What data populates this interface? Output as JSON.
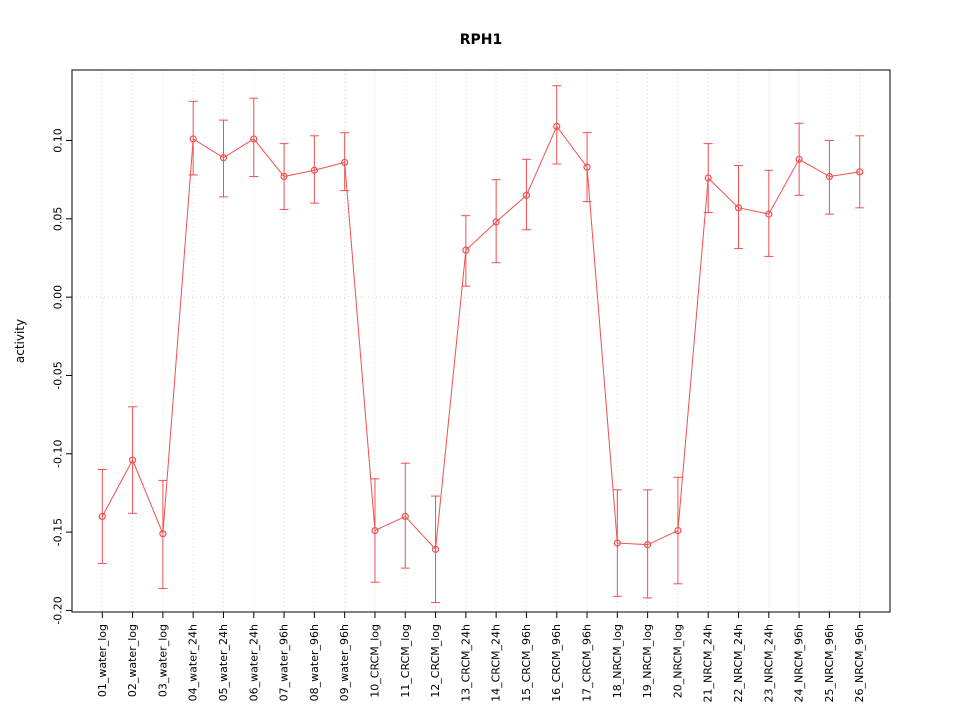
{
  "chart_data": {
    "type": "line",
    "title": "RPH1",
    "xlabel": "",
    "ylabel": "activity",
    "ylim": [
      -0.201,
      0.145
    ],
    "ytick_values": [
      -0.2,
      -0.15,
      -0.1,
      -0.05,
      0.0,
      0.05,
      0.1
    ],
    "ytick_labels": [
      "-0.20",
      "-0.15",
      "-0.10",
      "-0.05",
      "0.00",
      "0.05",
      "0.10"
    ],
    "grid": "dotted vertical line at each category, dotted horizontal line at 0",
    "legend": "none",
    "series_color": "#f05050",
    "grid_color": "#d4d4d4",
    "categories": [
      "01_water_log",
      "02_water_log",
      "03_water_log",
      "04_water_24h",
      "05_water_24h",
      "06_water_24h",
      "07_water_96h",
      "08_water_96h",
      "09_water_96h",
      "10_CRCM_log",
      "11_CRCM_log",
      "12_CRCM_log",
      "13_CRCM_24h",
      "14_CRCM_24h",
      "15_CRCM_96h",
      "16_CRCM_96h",
      "17_CRCM_96h",
      "18_NRCM_log",
      "19_NRCM_log",
      "20_NRCM_log",
      "21_NRCM_24h",
      "22_NRCM_24h",
      "23_NRCM_24h",
      "24_NRCM_96h",
      "25_NRCM_96h",
      "26_NRCM_96h"
    ],
    "values": [
      -0.14,
      -0.104,
      -0.151,
      0.101,
      0.089,
      0.101,
      0.077,
      0.081,
      0.086,
      -0.149,
      -0.14,
      -0.161,
      0.03,
      0.048,
      0.065,
      0.109,
      0.083,
      -0.157,
      -0.158,
      -0.149,
      0.076,
      0.057,
      0.053,
      0.088,
      0.077,
      0.08
    ],
    "err_upper": [
      -0.11,
      -0.07,
      -0.117,
      0.125,
      0.113,
      0.127,
      0.098,
      0.103,
      0.105,
      -0.116,
      -0.106,
      -0.127,
      0.052,
      0.075,
      0.088,
      0.135,
      0.105,
      -0.123,
      -0.123,
      -0.115,
      0.098,
      0.084,
      0.081,
      0.111,
      0.1,
      0.103
    ],
    "err_lower": [
      -0.17,
      -0.138,
      -0.186,
      0.078,
      0.064,
      0.077,
      0.056,
      0.06,
      0.068,
      -0.182,
      -0.173,
      -0.195,
      0.007,
      0.022,
      0.043,
      0.085,
      0.061,
      -0.191,
      -0.192,
      -0.183,
      0.054,
      0.031,
      0.026,
      0.065,
      0.053,
      0.057
    ]
  }
}
